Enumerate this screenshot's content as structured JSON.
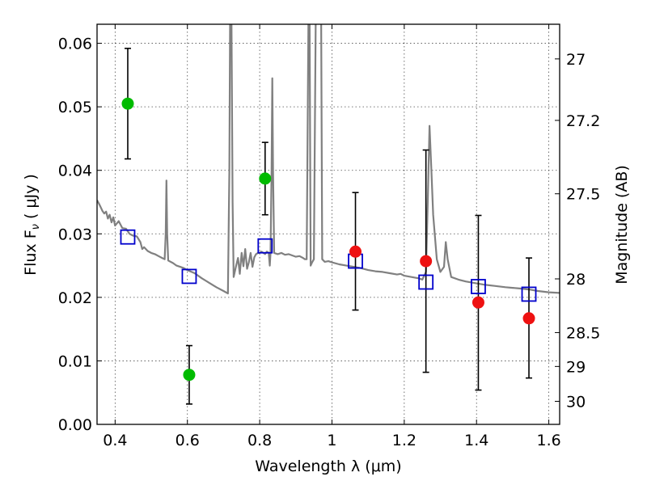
{
  "chart_data": {
    "type": "scatter",
    "xlabel": "Wavelength  λ (μm)",
    "ylabel_text": "Flux  F",
    "ylabel_sub": "ν",
    "ylabel_unit": " ( μJy )",
    "ylabel2": "Magnitude (AB)",
    "xlim": [
      0.35,
      1.63
    ],
    "ylim": [
      0.0,
      0.063
    ],
    "x_ticks": [
      0.4,
      0.6,
      0.8,
      1.0,
      1.2,
      1.4,
      1.6
    ],
    "x_tick_labels": [
      "0.4",
      "0.6",
      "0.8",
      "1",
      "1.2",
      "1.4",
      "1.6"
    ],
    "y_ticks": [
      0.0,
      0.01,
      0.02,
      0.03,
      0.04,
      0.05,
      0.06
    ],
    "y_tick_labels": [
      "0.00",
      "0.01",
      "0.02",
      "0.03",
      "0.04",
      "0.05",
      "0.06"
    ],
    "y2_ticks": [
      {
        "label": "27",
        "mag": 27.0
      },
      {
        "label": "27.2",
        "mag": 27.2
      },
      {
        "label": "27.5",
        "mag": 27.5
      },
      {
        "label": "28",
        "mag": 28.0
      },
      {
        "label": "28.5",
        "mag": 28.5
      },
      {
        "label": "29",
        "mag": 29.0
      },
      {
        "label": "30",
        "mag": 30.0
      }
    ],
    "grid": true,
    "colors": {
      "green": "#00bb00",
      "red": "#ee1111",
      "model": "#808080",
      "square": "#0000cc",
      "errorbar": "#000000"
    },
    "green_points": [
      {
        "x": 0.435,
        "y": 0.0505,
        "ylo": 0.0418,
        "yhi": 0.0592
      },
      {
        "x": 0.605,
        "y": 0.0078,
        "ylo": 0.0032,
        "yhi": 0.0124
      },
      {
        "x": 0.815,
        "y": 0.0387,
        "ylo": 0.033,
        "yhi": 0.0444
      }
    ],
    "red_points": [
      {
        "x": 1.065,
        "y": 0.0272,
        "ylo": 0.018,
        "yhi": 0.0365
      },
      {
        "x": 1.26,
        "y": 0.0257,
        "ylo": 0.0082,
        "yhi": 0.0432
      },
      {
        "x": 1.405,
        "y": 0.0192,
        "ylo": 0.0054,
        "yhi": 0.0329
      },
      {
        "x": 1.545,
        "y": 0.0167,
        "ylo": 0.0073,
        "yhi": 0.0262
      }
    ],
    "model_squares": [
      {
        "x": 0.435,
        "y": 0.0295
      },
      {
        "x": 0.605,
        "y": 0.0233
      },
      {
        "x": 0.815,
        "y": 0.0281
      },
      {
        "x": 1.065,
        "y": 0.0257
      },
      {
        "x": 1.26,
        "y": 0.0224
      },
      {
        "x": 1.405,
        "y": 0.0217
      },
      {
        "x": 1.545,
        "y": 0.0205
      }
    ],
    "model_spectrum": [
      [
        0.35,
        0.0353
      ],
      [
        0.355,
        0.0348
      ],
      [
        0.36,
        0.0342
      ],
      [
        0.365,
        0.0336
      ],
      [
        0.37,
        0.0332
      ],
      [
        0.375,
        0.0335
      ],
      [
        0.38,
        0.0324
      ],
      [
        0.385,
        0.033
      ],
      [
        0.39,
        0.0318
      ],
      [
        0.395,
        0.0326
      ],
      [
        0.4,
        0.0313
      ],
      [
        0.41,
        0.032
      ],
      [
        0.42,
        0.0309
      ],
      [
        0.43,
        0.0308
      ],
      [
        0.44,
        0.03
      ],
      [
        0.45,
        0.0297
      ],
      [
        0.46,
        0.0296
      ],
      [
        0.47,
        0.0287
      ],
      [
        0.475,
        0.0276
      ],
      [
        0.48,
        0.0279
      ],
      [
        0.49,
        0.0273
      ],
      [
        0.5,
        0.027
      ],
      [
        0.51,
        0.0268
      ],
      [
        0.52,
        0.0265
      ],
      [
        0.53,
        0.0262
      ],
      [
        0.537,
        0.026
      ],
      [
        0.54,
        0.03
      ],
      [
        0.542,
        0.0384
      ],
      [
        0.544,
        0.03
      ],
      [
        0.547,
        0.0258
      ],
      [
        0.56,
        0.0254
      ],
      [
        0.57,
        0.025
      ],
      [
        0.58,
        0.0248
      ],
      [
        0.59,
        0.0246
      ],
      [
        0.6,
        0.0243
      ],
      [
        0.62,
        0.0238
      ],
      [
        0.64,
        0.023
      ],
      [
        0.66,
        0.0223
      ],
      [
        0.68,
        0.0216
      ],
      [
        0.7,
        0.021
      ],
      [
        0.712,
        0.0206
      ],
      [
        0.716,
        0.04
      ],
      [
        0.718,
        0.064
      ],
      [
        0.722,
        0.064
      ],
      [
        0.725,
        0.035
      ],
      [
        0.728,
        0.0232
      ],
      [
        0.735,
        0.025
      ],
      [
        0.74,
        0.0262
      ],
      [
        0.745,
        0.0237
      ],
      [
        0.75,
        0.027
      ],
      [
        0.755,
        0.0249
      ],
      [
        0.76,
        0.0276
      ],
      [
        0.765,
        0.0245
      ],
      [
        0.77,
        0.0255
      ],
      [
        0.775,
        0.027
      ],
      [
        0.78,
        0.0248
      ],
      [
        0.785,
        0.0263
      ],
      [
        0.79,
        0.0268
      ],
      [
        0.795,
        0.027
      ],
      [
        0.8,
        0.027
      ],
      [
        0.805,
        0.0272
      ],
      [
        0.81,
        0.027
      ],
      [
        0.815,
        0.0268
      ],
      [
        0.82,
        0.0272
      ],
      [
        0.825,
        0.027
      ],
      [
        0.828,
        0.025
      ],
      [
        0.83,
        0.027
      ],
      [
        0.833,
        0.04
      ],
      [
        0.835,
        0.0545
      ],
      [
        0.837,
        0.04
      ],
      [
        0.84,
        0.027
      ],
      [
        0.85,
        0.0268
      ],
      [
        0.86,
        0.027
      ],
      [
        0.87,
        0.0267
      ],
      [
        0.88,
        0.0268
      ],
      [
        0.89,
        0.0266
      ],
      [
        0.9,
        0.0264
      ],
      [
        0.91,
        0.0265
      ],
      [
        0.92,
        0.0262
      ],
      [
        0.925,
        0.026
      ],
      [
        0.93,
        0.026
      ],
      [
        0.935,
        0.064
      ],
      [
        0.938,
        0.064
      ],
      [
        0.941,
        0.025
      ],
      [
        0.945,
        0.0255
      ],
      [
        0.95,
        0.026
      ],
      [
        0.955,
        0.064
      ],
      [
        0.958,
        0.064
      ],
      [
        0.961,
        0.064
      ],
      [
        0.964,
        0.064
      ],
      [
        0.967,
        0.064
      ],
      [
        0.97,
        0.064
      ],
      [
        0.973,
        0.026
      ],
      [
        0.98,
        0.0256
      ],
      [
        0.99,
        0.0257
      ],
      [
        1.0,
        0.0255
      ],
      [
        1.02,
        0.0252
      ],
      [
        1.04,
        0.025
      ],
      [
        1.06,
        0.0248
      ],
      [
        1.08,
        0.0246
      ],
      [
        1.1,
        0.0243
      ],
      [
        1.12,
        0.0241
      ],
      [
        1.14,
        0.024
      ],
      [
        1.16,
        0.0238
      ],
      [
        1.18,
        0.0236
      ],
      [
        1.19,
        0.0237
      ],
      [
        1.2,
        0.0234
      ],
      [
        1.22,
        0.0232
      ],
      [
        1.24,
        0.023
      ],
      [
        1.25,
        0.0228
      ],
      [
        1.26,
        0.024
      ],
      [
        1.265,
        0.035
      ],
      [
        1.27,
        0.047
      ],
      [
        1.275,
        0.04
      ],
      [
        1.28,
        0.033
      ],
      [
        1.29,
        0.026
      ],
      [
        1.3,
        0.024
      ],
      [
        1.31,
        0.0248
      ],
      [
        1.315,
        0.0287
      ],
      [
        1.32,
        0.026
      ],
      [
        1.33,
        0.0232
      ],
      [
        1.35,
        0.0228
      ],
      [
        1.37,
        0.0225
      ],
      [
        1.4,
        0.0222
      ],
      [
        1.42,
        0.022
      ],
      [
        1.45,
        0.0218
      ],
      [
        1.48,
        0.0216
      ],
      [
        1.5,
        0.0215
      ],
      [
        1.52,
        0.0214
      ],
      [
        1.55,
        0.0212
      ],
      [
        1.57,
        0.021
      ],
      [
        1.6,
        0.0208
      ],
      [
        1.63,
        0.0207
      ]
    ]
  }
}
